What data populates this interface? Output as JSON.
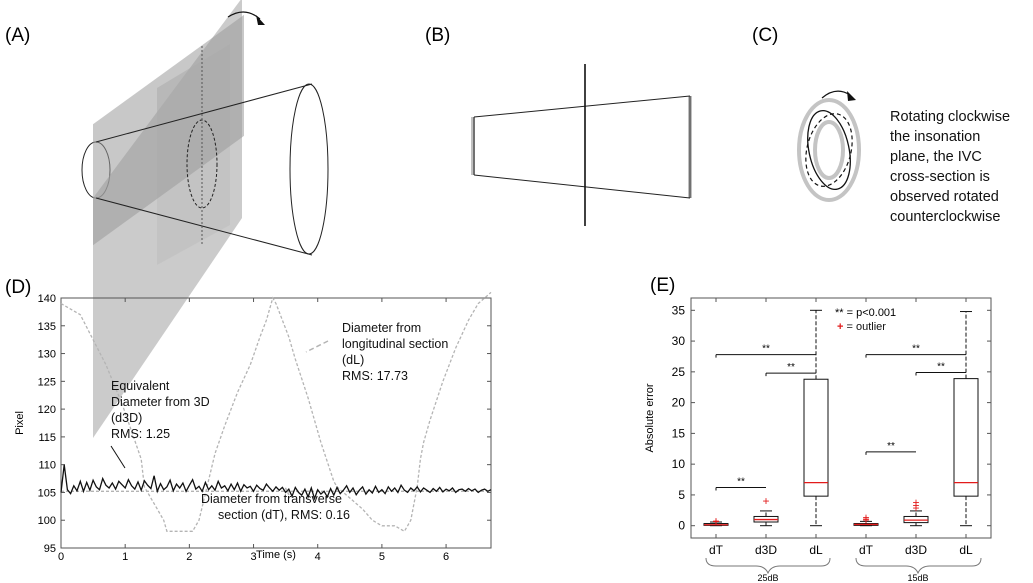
{
  "panels": {
    "a": {
      "label": "(A)"
    },
    "b": {
      "label": "(B)"
    },
    "c": {
      "label": "(C)",
      "caption_lines": [
        "Rotating clockwise",
        "the insonation",
        "plane, the IVC",
        "cross-section is",
        "observed rotated",
        "counterclockwise"
      ]
    },
    "d": {
      "label": "(D)",
      "annotations": {
        "d3d": [
          "Equivalent",
          "Diameter from 3D",
          "(d3D)",
          "RMS: 1.25"
        ],
        "dl": [
          "Diameter from",
          "longitudinal section",
          "(dL)",
          "RMS: 17.73"
        ],
        "dt": [
          "Diameter from transverse",
          "section (dT), RMS: 0.16"
        ]
      }
    },
    "e": {
      "label": "(E)",
      "legend": {
        "sig": "** = p<0.001",
        "outlier_symbol": "+",
        "outlier": " = outlier"
      },
      "sig_mark": "**"
    }
  },
  "colors": {
    "box_median": "#e21b1b",
    "outlier": "#e21b1b",
    "gray_fill": "#9a9a9a",
    "dashed_gray": "#b4b4b4",
    "ring_gray": "#c4c4c4"
  },
  "chart_data": [
    {
      "type": "line",
      "ylabel": "Pixel",
      "xlabel": "Time (s)",
      "xlim": [
        0,
        6.7
      ],
      "ylim": [
        95,
        140
      ],
      "xticks": [
        0,
        1,
        2,
        3,
        4,
        5,
        6
      ],
      "yticks": [
        95,
        100,
        105,
        110,
        115,
        120,
        125,
        130,
        135,
        140
      ],
      "grid": false,
      "series": [
        {
          "name": "d3D",
          "style": "solid-black",
          "x": [
            0.0,
            0.05,
            0.1,
            0.15,
            0.2,
            0.25,
            0.3,
            0.35,
            0.4,
            0.45,
            0.5,
            0.55,
            0.6,
            0.65,
            0.7,
            0.75,
            0.8,
            0.85,
            0.9,
            0.95,
            1.0,
            1.05,
            1.1,
            1.15,
            1.2,
            1.25,
            1.3,
            1.35,
            1.4,
            1.45,
            1.5,
            1.55,
            1.6,
            1.65,
            1.7,
            1.75,
            1.8,
            1.85,
            1.9,
            1.95,
            2.0,
            2.05,
            2.1,
            2.15,
            2.2,
            2.25,
            2.3,
            2.35,
            2.4,
            2.45,
            2.5,
            2.55,
            2.6,
            2.65,
            2.7,
            2.75,
            2.8,
            2.85,
            2.9,
            2.95,
            3.0,
            3.05,
            3.1,
            3.15,
            3.2,
            3.25,
            3.3,
            3.35,
            3.4,
            3.45,
            3.5,
            3.55,
            3.6,
            3.65,
            3.7,
            3.75,
            3.8,
            3.85,
            3.9,
            3.95,
            4.0,
            4.05,
            4.1,
            4.15,
            4.2,
            4.25,
            4.3,
            4.35,
            4.4,
            4.45,
            4.5,
            4.55,
            4.6,
            4.65,
            4.7,
            4.75,
            4.8,
            4.85,
            4.9,
            4.95,
            5.0,
            5.05,
            5.1,
            5.15,
            5.2,
            5.25,
            5.3,
            5.35,
            5.4,
            5.45,
            5.5,
            5.55,
            5.6,
            5.65,
            5.7,
            5.75,
            5.8,
            5.85,
            5.9,
            5.95,
            6.0,
            6.05,
            6.1,
            6.15,
            6.2,
            6.25,
            6.3,
            6.35,
            6.4,
            6.45,
            6.5,
            6.55,
            6.6,
            6.65,
            6.7
          ],
          "y": [
            105.0,
            110.0,
            105.5,
            104.8,
            106.2,
            105.3,
            107.0,
            105.2,
            106.8,
            105.4,
            107.2,
            106.0,
            105.5,
            107.5,
            106.3,
            105.8,
            106.7,
            105.6,
            107.0,
            106.4,
            105.8,
            107.3,
            106.2,
            105.6,
            106.9,
            105.4,
            107.1,
            106.3,
            105.7,
            108.0,
            105.2,
            106.6,
            105.5,
            106.0,
            107.2,
            105.3,
            106.5,
            105.8,
            106.7,
            105.2,
            106.3,
            107.3,
            105.6,
            106.1,
            105.2,
            106.8,
            105.5,
            106.2,
            105.4,
            107.0,
            105.8,
            106.2,
            105.3,
            106.5,
            105.5,
            106.7,
            105.2,
            106.4,
            105.8,
            106.1,
            105.2,
            106.3,
            105.7,
            105.4,
            106.5,
            105.8,
            105.2,
            106.0,
            105.4,
            105.9,
            105.0,
            105.6,
            104.3,
            105.9,
            105.0,
            104.5,
            105.6,
            104.2,
            105.8,
            103.9,
            105.5,
            104.7,
            105.2,
            104.2,
            105.7,
            104.5,
            105.9,
            104.8,
            105.4,
            106.2,
            105.0,
            105.8,
            104.6,
            105.4,
            106.0,
            104.7,
            105.5,
            104.9,
            106.1,
            105.0,
            105.5,
            104.8,
            106.0,
            105.2,
            105.8,
            105.0,
            106.3,
            105.4,
            105.0,
            105.8,
            105.3,
            106.0,
            105.1,
            105.8,
            105.4,
            105.0,
            105.7,
            105.2,
            105.9,
            105.1,
            105.6,
            105.3,
            105.8,
            105.0,
            105.5,
            105.6,
            105.2,
            105.7,
            105.3,
            105.6,
            105.0,
            105.4,
            105.6,
            105.2,
            105.5
          ]
        },
        {
          "name": "dL",
          "style": "dashed-gray",
          "x": [
            0.0,
            0.3,
            0.7,
            0.95,
            1.1,
            1.25,
            1.3,
            1.5,
            1.55,
            1.6,
            1.65,
            2.05,
            2.15,
            2.4,
            2.55,
            2.75,
            2.95,
            3.1,
            3.2,
            3.3,
            3.35,
            3.45,
            3.55,
            3.65,
            3.85,
            4.05,
            4.25,
            4.3,
            4.7,
            4.85,
            5.0,
            5.2,
            5.35,
            5.4,
            5.45,
            5.55,
            5.6,
            5.65,
            5.75,
            5.95,
            6.15,
            6.35,
            6.5,
            6.7
          ],
          "y": [
            139,
            137,
            128,
            121,
            116,
            111,
            106,
            102,
            101,
            100,
            98,
            98,
            100,
            112,
            117,
            123,
            128,
            133,
            136,
            140,
            139,
            136,
            133,
            129,
            122,
            114,
            107,
            106,
            102,
            100,
            99,
            99,
            98,
            99,
            100,
            106,
            111,
            114,
            118,
            125,
            131,
            136,
            139,
            141
          ]
        },
        {
          "name": "dT",
          "style": "dashed-gray",
          "x": [
            0,
            6.7
          ],
          "y": [
            105.2,
            105.2
          ]
        }
      ]
    },
    {
      "type": "box",
      "ylabel": "Absolute error",
      "ylim": [
        -2,
        37
      ],
      "yticks": [
        0,
        5,
        10,
        15,
        20,
        25,
        30,
        35
      ],
      "categories": [
        "dT",
        "d3D",
        "dL",
        "dT",
        "d3D",
        "dL"
      ],
      "groups": [
        {
          "name": "25dB",
          "categories": [
            "dT",
            "d3D",
            "dL"
          ]
        },
        {
          "name": "15dB",
          "categories": [
            "dT",
            "d3D",
            "dL"
          ]
        }
      ],
      "boxes": [
        {
          "min": 0,
          "q1": 0.05,
          "median": 0.15,
          "q3": 0.35,
          "max": 0.6,
          "outliers": [
            0.7,
            0.8
          ]
        },
        {
          "min": 0,
          "q1": 0.6,
          "median": 1.0,
          "q3": 1.5,
          "max": 2.4,
          "outliers": [
            4.0
          ]
        },
        {
          "min": 0,
          "q1": 4.8,
          "median": 7.0,
          "q3": 23.8,
          "max": 35,
          "outliers": []
        },
        {
          "min": 0,
          "q1": 0.05,
          "median": 0.2,
          "q3": 0.35,
          "max": 0.7,
          "outliers": [
            0.9,
            1.1,
            1.3
          ]
        },
        {
          "min": 0,
          "q1": 0.5,
          "median": 0.9,
          "q3": 1.5,
          "max": 2.4,
          "outliers": [
            2.9,
            3.3,
            3.8
          ]
        },
        {
          "min": 0,
          "q1": 4.8,
          "median": 7.0,
          "q3": 23.9,
          "max": 34.8,
          "outliers": []
        }
      ],
      "significance": [
        {
          "from": 0,
          "to": 1,
          "y": 6.2
        },
        {
          "from": 0,
          "to": 2,
          "y": 27.8
        },
        {
          "from": 1,
          "to": 2,
          "y": 24.8
        },
        {
          "from": 3,
          "to": 4,
          "y": 12.0
        },
        {
          "from": 3,
          "to": 5,
          "y": 27.8
        },
        {
          "from": 4,
          "to": 5,
          "y": 24.9
        }
      ]
    }
  ]
}
